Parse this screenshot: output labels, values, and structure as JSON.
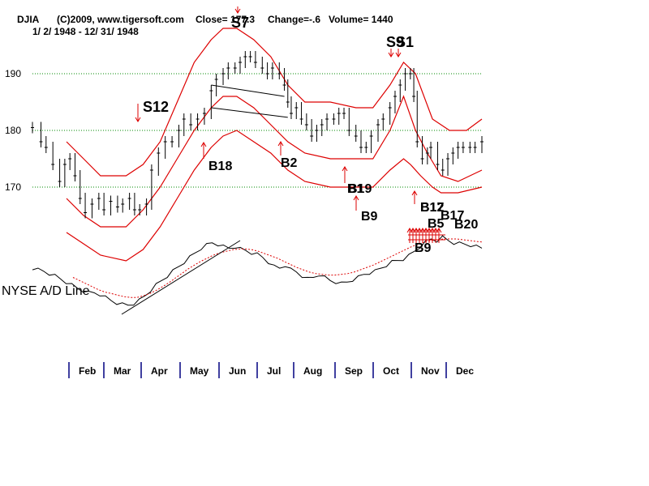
{
  "header": {
    "symbol": "DJIA",
    "copyright": "(C)2009, www.tigersoft.com",
    "close_text": "Close= 177.3",
    "change_text": "Change=-.6",
    "volume_text": "Volume= 1440",
    "date_range": "1/ 2/ 1948 - 12/ 31/ 1948"
  },
  "chart_data": {
    "type": "line",
    "title": "DJIA",
    "xlabel": "",
    "ylabel": "",
    "ylim": [
      157,
      200
    ],
    "y_ticks": [
      170,
      180,
      190
    ],
    "grid": true,
    "x_ticks": [
      "Feb",
      "Mar",
      "Apr",
      "May",
      "Jun",
      "Jul",
      "Aug",
      "Sep",
      "Oct",
      "Nov",
      "Dec"
    ],
    "series": [
      {
        "name": "",
        "style": "price-bars",
        "color": "#000000",
        "points": [
          [
            0,
            180.5
          ],
          [
            5,
            178
          ],
          [
            8,
            177
          ],
          [
            12,
            174
          ],
          [
            16,
            171
          ],
          [
            19,
            174
          ],
          [
            22,
            175
          ],
          [
            25,
            172
          ],
          [
            28,
            168
          ],
          [
            31,
            165.5
          ],
          [
            35,
            167
          ],
          [
            39,
            168
          ],
          [
            42,
            166
          ],
          [
            46,
            167.5
          ],
          [
            50,
            166.5
          ],
          [
            53,
            167
          ],
          [
            57,
            168
          ],
          [
            60,
            166
          ],
          [
            63,
            166
          ],
          [
            67,
            167
          ],
          [
            70,
            173
          ],
          [
            74,
            176
          ],
          [
            78,
            178
          ],
          [
            82,
            178
          ],
          [
            86,
            180
          ],
          [
            89,
            182
          ],
          [
            93,
            181
          ],
          [
            97,
            182
          ],
          [
            101,
            183
          ],
          [
            105,
            187
          ],
          [
            108,
            189
          ],
          [
            112,
            190
          ],
          [
            115,
            191
          ],
          [
            119,
            191
          ],
          [
            122,
            192
          ],
          [
            125,
            193
          ],
          [
            128,
            193
          ],
          [
            131,
            192
          ],
          [
            135,
            191
          ],
          [
            138,
            190
          ],
          [
            141,
            191
          ],
          [
            145,
            190
          ],
          [
            148,
            188
          ],
          [
            150,
            185
          ],
          [
            152,
            183
          ],
          [
            155,
            184
          ],
          [
            158,
            182
          ],
          [
            161,
            181
          ],
          [
            164,
            179
          ],
          [
            167,
            180
          ],
          [
            170,
            181
          ],
          [
            173,
            182
          ],
          [
            177,
            182
          ],
          [
            180,
            183
          ],
          [
            183,
            183
          ],
          [
            186,
            180
          ],
          [
            190,
            179
          ],
          [
            193,
            177
          ],
          [
            196,
            177
          ],
          [
            199,
            179
          ],
          [
            203,
            181
          ],
          [
            206,
            182
          ],
          [
            210,
            184
          ],
          [
            213,
            186
          ],
          [
            216,
            188
          ],
          [
            219,
            190
          ],
          [
            222,
            190
          ],
          [
            224,
            186
          ],
          [
            226,
            178
          ],
          [
            229,
            175
          ],
          [
            232,
            176
          ],
          [
            234,
            177
          ],
          [
            238,
            174
          ],
          [
            241,
            173
          ],
          [
            244,
            175
          ],
          [
            247,
            176
          ],
          [
            250,
            177
          ],
          [
            253,
            177
          ],
          [
            257,
            177
          ],
          [
            260,
            177
          ],
          [
            264,
            178
          ]
        ]
      },
      {
        "name": "",
        "style": "band-upper",
        "color": "#dd0000",
        "points": [
          [
            20,
            178
          ],
          [
            30,
            175
          ],
          [
            40,
            172
          ],
          [
            55,
            172
          ],
          [
            65,
            174
          ],
          [
            75,
            178
          ],
          [
            85,
            185
          ],
          [
            95,
            192
          ],
          [
            105,
            196
          ],
          [
            112,
            198
          ],
          [
            120,
            198
          ],
          [
            130,
            196
          ],
          [
            140,
            193
          ],
          [
            150,
            188
          ],
          [
            160,
            185
          ],
          [
            175,
            185
          ],
          [
            190,
            184
          ],
          [
            200,
            184
          ],
          [
            210,
            188
          ],
          [
            218,
            192
          ],
          [
            225,
            190
          ],
          [
            235,
            182
          ],
          [
            245,
            180
          ],
          [
            255,
            180
          ],
          [
            264,
            182
          ]
        ]
      },
      {
        "name": "",
        "style": "band-middle",
        "color": "#dd0000",
        "points": [
          [
            20,
            168
          ],
          [
            30,
            165
          ],
          [
            40,
            163
          ],
          [
            55,
            163
          ],
          [
            65,
            166
          ],
          [
            75,
            170
          ],
          [
            85,
            175
          ],
          [
            95,
            180
          ],
          [
            105,
            184
          ],
          [
            112,
            186
          ],
          [
            120,
            186
          ],
          [
            130,
            184
          ],
          [
            140,
            181
          ],
          [
            150,
            178
          ],
          [
            160,
            176
          ],
          [
            175,
            175
          ],
          [
            190,
            175
          ],
          [
            200,
            175
          ],
          [
            210,
            180
          ],
          [
            218,
            186
          ],
          [
            225,
            180
          ],
          [
            232,
            176
          ],
          [
            240,
            172
          ],
          [
            250,
            171
          ],
          [
            264,
            173
          ]
        ]
      },
      {
        "name": "",
        "style": "band-lower",
        "color": "#dd0000",
        "points": [
          [
            20,
            162
          ],
          [
            30,
            160
          ],
          [
            40,
            158
          ],
          [
            55,
            157
          ],
          [
            65,
            159
          ],
          [
            75,
            163
          ],
          [
            85,
            168
          ],
          [
            95,
            173
          ],
          [
            105,
            177
          ],
          [
            112,
            179
          ],
          [
            120,
            180
          ],
          [
            130,
            178
          ],
          [
            140,
            176
          ],
          [
            150,
            173
          ],
          [
            160,
            171
          ],
          [
            175,
            170
          ],
          [
            190,
            170
          ],
          [
            200,
            170
          ],
          [
            210,
            173
          ],
          [
            218,
            175
          ],
          [
            222,
            174
          ],
          [
            228,
            172
          ],
          [
            235,
            170
          ],
          [
            240,
            169
          ],
          [
            250,
            169
          ],
          [
            264,
            170
          ]
        ]
      }
    ],
    "ad_line": {
      "name": "NYSE A/D Line",
      "color": "#000000",
      "ma_color": "#dd0000",
      "values": [
        0.62,
        0.6,
        0.58,
        0.55,
        0.52,
        0.48,
        0.44,
        0.4,
        0.36,
        0.33,
        0.3,
        0.3,
        0.28,
        0.24,
        0.2,
        0.17,
        0.15,
        0.14,
        0.16,
        0.2,
        0.26,
        0.33,
        0.4,
        0.46,
        0.52,
        0.58,
        0.64,
        0.7,
        0.76,
        0.82,
        0.88,
        0.92,
        0.95,
        0.93,
        0.9,
        0.88,
        0.9,
        0.87,
        0.85,
        0.82,
        0.8,
        0.76,
        0.7,
        0.64,
        0.62,
        0.66,
        0.6,
        0.57,
        0.52,
        0.48,
        0.5,
        0.54,
        0.5,
        0.46,
        0.44,
        0.42,
        0.44,
        0.47,
        0.5,
        0.54,
        0.56,
        0.58,
        0.62,
        0.66,
        0.7,
        0.72,
        0.74,
        0.78,
        0.84,
        0.9,
        0.96,
        1.0,
        0.98,
        1.02,
        0.98,
        0.95,
        0.94,
        0.93,
        0.92,
        0.9,
        0.88
      ],
      "ma_values": [
        0.5,
        0.46,
        0.42,
        0.38,
        0.34,
        0.31,
        0.29,
        0.27,
        0.25,
        0.24,
        0.24,
        0.26,
        0.29,
        0.33,
        0.38,
        0.43,
        0.49,
        0.55,
        0.61,
        0.66,
        0.71,
        0.75,
        0.79,
        0.82,
        0.84,
        0.86,
        0.87,
        0.87,
        0.86,
        0.84,
        0.81,
        0.78,
        0.75,
        0.71,
        0.67,
        0.63,
        0.6,
        0.57,
        0.55,
        0.54,
        0.53,
        0.53,
        0.54,
        0.55,
        0.57,
        0.6,
        0.63,
        0.66,
        0.7,
        0.74,
        0.78,
        0.82,
        0.86,
        0.9,
        0.93,
        0.96,
        0.98,
        0.99,
        1.0,
        1.0,
        1.0,
        0.99,
        0.98,
        0.97,
        0.96
      ]
    }
  },
  "signals": [
    {
      "label": "S12",
      "size": 18
    },
    {
      "label": "S7",
      "size": 18
    },
    {
      "label": "S1",
      "size": 18
    },
    {
      "label": "S9",
      "size": 18
    },
    {
      "label": "B18",
      "size": 16
    },
    {
      "label": "B2",
      "size": 16
    },
    {
      "label": "B19",
      "size": 16
    },
    {
      "label": "B9",
      "size": 16
    },
    {
      "label": "B1",
      "size": 16
    },
    {
      "label": "B17",
      "size": 16
    },
    {
      "label": "B5",
      "size": 16
    },
    {
      "label": "B20",
      "size": 16
    },
    {
      "label": "B12",
      "size": 16
    },
    {
      "label": "B9",
      "size": 16
    },
    {
      "label": "B17",
      "size": 16
    }
  ]
}
